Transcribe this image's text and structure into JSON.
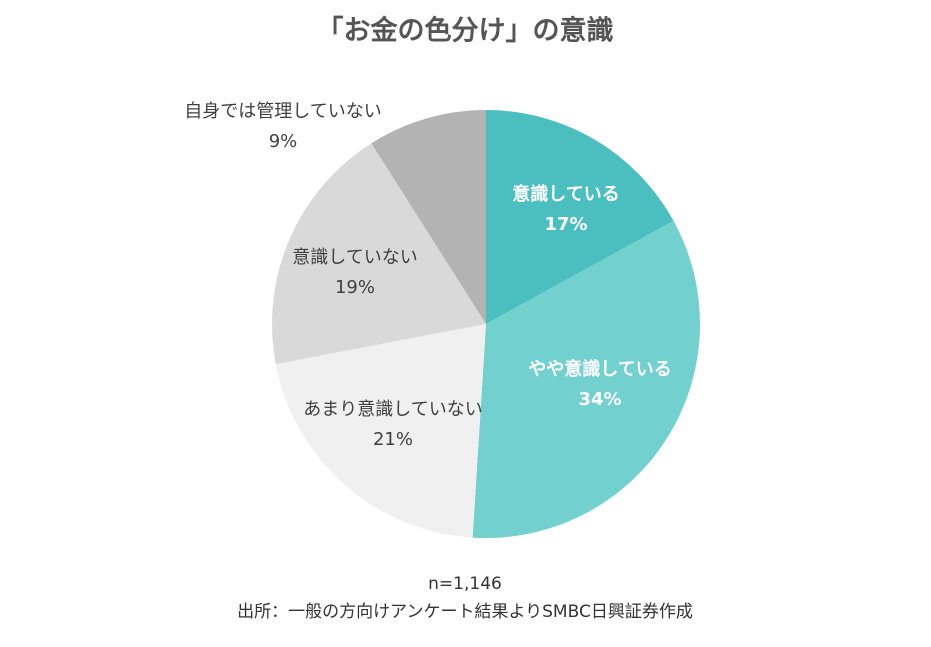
{
  "chart_data": {
    "type": "pie",
    "title": "「お金の色分け」の意識",
    "categories": [
      "意識している",
      "やや意識している",
      "あまり意識していない",
      "意識していない",
      "自身では管理していない"
    ],
    "values": [
      17,
      34,
      21,
      19,
      9
    ],
    "value_labels": [
      "17%",
      "34%",
      "21%",
      "19%",
      "9%"
    ],
    "colors": [
      "#4bbfbf",
      "#72d0cf",
      "#f0f0f0",
      "#d9d9d9",
      "#b3b3b3"
    ],
    "label_colors": [
      "#ffffff",
      "#ffffff",
      "#404040",
      "#404040",
      "#404040"
    ],
    "sample": "n=1,146",
    "source": "出所：一般の方向けアンケート結果よりSMBC日興証券作成"
  }
}
